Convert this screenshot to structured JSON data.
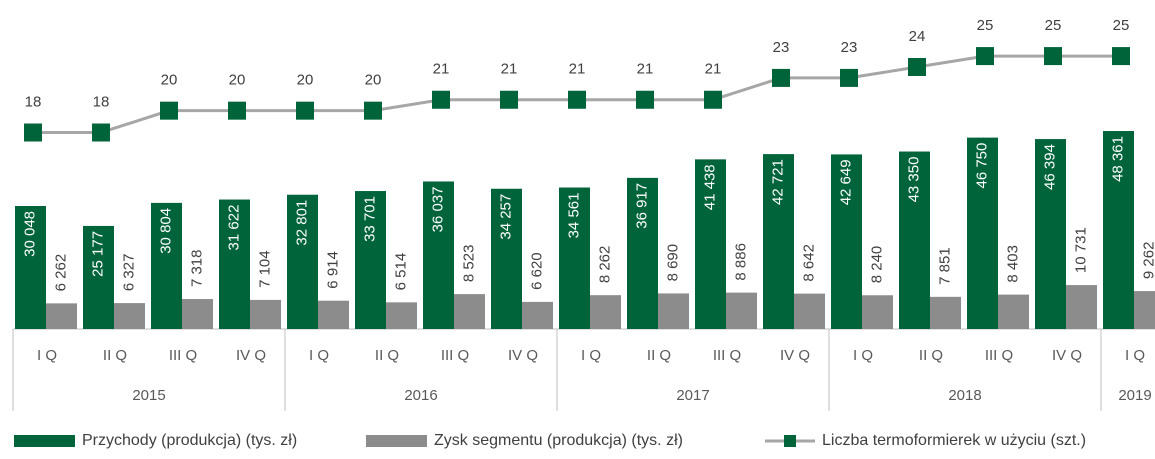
{
  "chart_data": {
    "type": "bar",
    "groups": [
      {
        "name": "2015",
        "categories": [
          "I Q",
          "II Q",
          "III Q",
          "IV Q"
        ]
      },
      {
        "name": "2016",
        "categories": [
          "I Q",
          "II Q",
          "III Q",
          "IV Q"
        ]
      },
      {
        "name": "2017",
        "categories": [
          "I Q",
          "II Q",
          "III Q",
          "IV Q"
        ]
      },
      {
        "name": "2018",
        "categories": [
          "I Q",
          "II Q",
          "III Q",
          "IV Q"
        ]
      },
      {
        "name": "2019",
        "categories": [
          "I Q"
        ]
      }
    ],
    "ylim": [
      0,
      80000
    ],
    "y2lim": [
      0,
      30
    ],
    "series": [
      {
        "name": "Przychody (produkcja) (tys. zł)",
        "type": "bar",
        "color": "#00643a",
        "values": [
          30048,
          25177,
          30804,
          31622,
          32801,
          33701,
          36037,
          34257,
          34561,
          36917,
          41438,
          42721,
          42649,
          43350,
          46750,
          46394,
          48361
        ],
        "value_labels": [
          "30 048",
          "25 177",
          "30 804",
          "31 622",
          "32 801",
          "33 701",
          "36 037",
          "34 257",
          "34 561",
          "36 917",
          "41 438",
          "42 721",
          "42 649",
          "43 350",
          "46 750",
          "46 394",
          "48 361"
        ]
      },
      {
        "name": "Zysk segmentu (produkcja)  (tys. zł)",
        "type": "bar",
        "color": "#8c8c8c",
        "values": [
          6262,
          6327,
          7318,
          7104,
          6914,
          6514,
          8523,
          6620,
          8262,
          8690,
          8886,
          8642,
          8240,
          7851,
          8403,
          10731,
          9262
        ],
        "value_labels": [
          "6 262",
          "6 327",
          "7 318",
          "7 104",
          "6 914",
          "6 514",
          "8 523",
          "6 620",
          "8 262",
          "8 690",
          "8 886",
          "8 642",
          "8 240",
          "7 851",
          "8 403",
          "10 731",
          "9 262"
        ]
      },
      {
        "name": "Liczba termoformierek w użyciu (szt.)",
        "type": "line",
        "axis": "y2",
        "color": "#a6a6a6",
        "marker_color": "#00643a",
        "values": [
          18,
          18,
          20,
          20,
          20,
          20,
          21,
          21,
          21,
          21,
          21,
          23,
          23,
          24,
          25,
          25,
          25
        ]
      }
    ]
  }
}
